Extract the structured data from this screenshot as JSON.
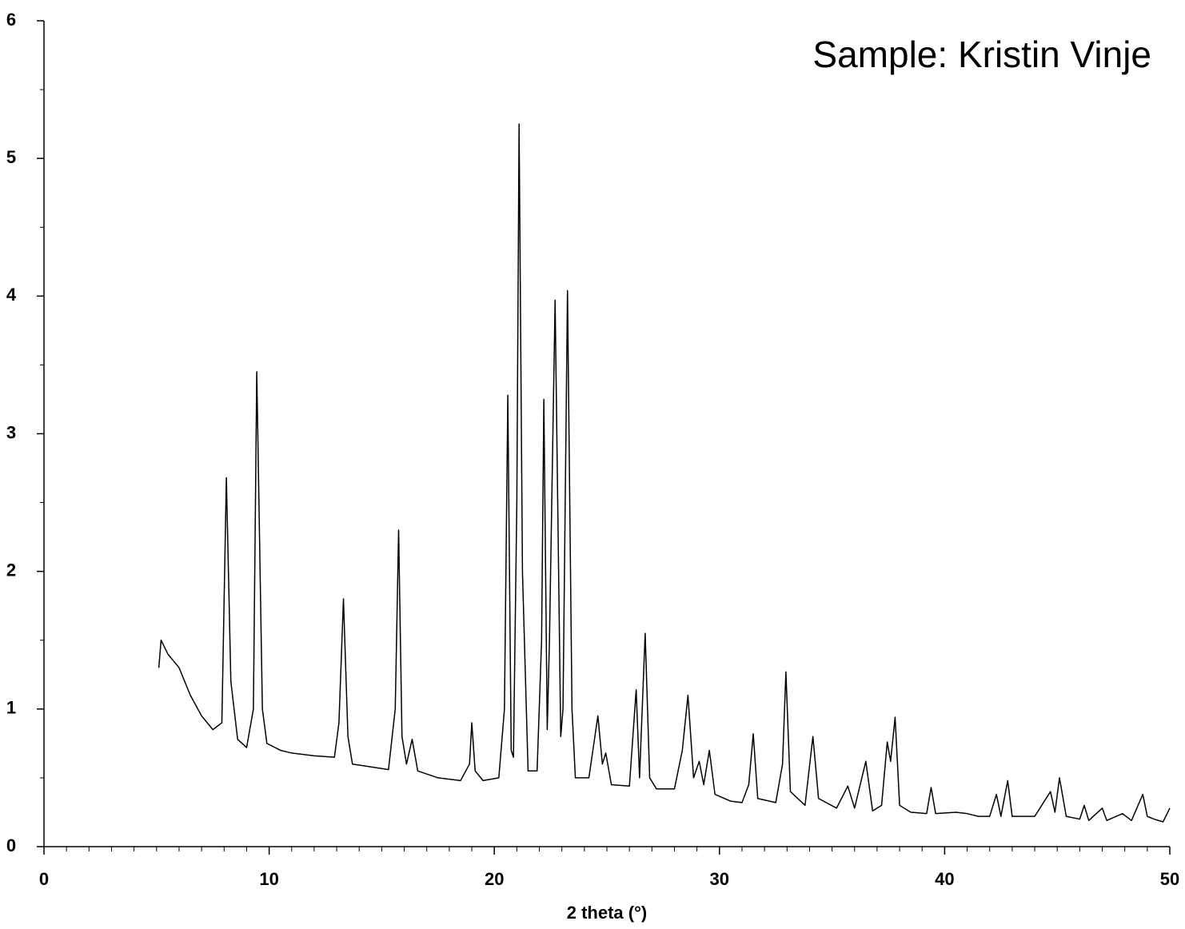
{
  "chart_data": {
    "type": "line",
    "annotation": "Sample: Kristin Vinje",
    "xlabel": "2 theta (°)",
    "color": "#000000",
    "xlim": [
      0,
      50
    ],
    "xticks": [
      0,
      10,
      20,
      30,
      40,
      50
    ],
    "xminorticks": [
      1,
      2,
      3,
      4,
      5,
      6,
      7,
      8,
      9,
      11,
      12,
      13,
      14,
      15,
      16,
      17,
      18,
      19,
      21,
      22,
      23,
      24,
      25,
      26,
      27,
      28,
      29,
      31,
      32,
      33,
      34,
      35,
      36,
      37,
      38,
      39,
      41,
      42,
      43,
      44,
      45,
      46,
      47,
      48,
      49
    ],
    "ylim": [
      0,
      6
    ],
    "yticks": [
      0,
      1,
      2,
      3,
      4,
      5,
      6
    ],
    "yminorticks": [
      0.5,
      1.5,
      2.5,
      3.5,
      4.5,
      5.5
    ],
    "x": [
      5.1,
      5.2,
      5.5,
      6,
      6.5,
      7,
      7.5,
      7.9,
      8.1,
      8.3,
      8.6,
      9.0,
      9.3,
      9.45,
      9.7,
      9.9,
      10.5,
      11,
      12,
      12.9,
      13.1,
      13.3,
      13.5,
      13.7,
      14.5,
      15.3,
      15.6,
      15.75,
      15.9,
      16.1,
      16.35,
      16.6,
      17.5,
      18.5,
      18.9,
      19.0,
      19.15,
      19.5,
      20.2,
      20.45,
      20.6,
      20.75,
      20.85,
      21.0,
      21.1,
      21.25,
      21.5,
      21.9,
      22.1,
      22.2,
      22.35,
      22.45,
      22.7,
      22.95,
      23.05,
      23.25,
      23.45,
      23.6,
      24.2,
      24.6,
      24.8,
      24.95,
      25.2,
      26.0,
      26.3,
      26.45,
      26.7,
      26.9,
      27.2,
      28.0,
      28.35,
      28.6,
      28.85,
      29.1,
      29.3,
      29.55,
      29.8,
      30.5,
      31.0,
      31.3,
      31.5,
      31.7,
      32.5,
      32.8,
      32.95,
      33.15,
      33.8,
      34.15,
      34.4,
      35.2,
      35.7,
      36.0,
      36.5,
      36.8,
      37.2,
      37.45,
      37.6,
      37.8,
      38.0,
      38.5,
      39.2,
      39.4,
      39.6,
      40.5,
      41,
      41.5,
      42.0,
      42.3,
      42.5,
      42.8,
      43.0,
      44,
      44.7,
      44.9,
      45.1,
      45.4,
      46.0,
      46.2,
      46.4,
      47,
      47.2,
      47.9,
      48.3,
      48.8,
      49.0,
      49.3,
      49.7,
      50.0
    ],
    "values": [
      1.3,
      1.5,
      1.4,
      1.3,
      1.1,
      0.95,
      0.85,
      0.9,
      2.68,
      1.2,
      0.78,
      0.72,
      1.0,
      3.45,
      1.0,
      0.75,
      0.7,
      0.68,
      0.66,
      0.65,
      0.9,
      1.8,
      0.8,
      0.6,
      0.58,
      0.56,
      1.0,
      2.3,
      0.8,
      0.6,
      0.78,
      0.55,
      0.5,
      0.48,
      0.6,
      0.9,
      0.55,
      0.48,
      0.5,
      1.0,
      3.28,
      0.7,
      0.65,
      2.5,
      5.25,
      2.0,
      0.55,
      0.55,
      1.5,
      3.25,
      0.85,
      1.5,
      3.97,
      0.8,
      1.0,
      4.04,
      1.0,
      0.5,
      0.5,
      0.95,
      0.6,
      0.68,
      0.45,
      0.44,
      1.14,
      0.5,
      1.55,
      0.5,
      0.42,
      0.42,
      0.7,
      1.1,
      0.5,
      0.62,
      0.45,
      0.7,
      0.38,
      0.33,
      0.32,
      0.45,
      0.82,
      0.35,
      0.32,
      0.6,
      1.27,
      0.4,
      0.3,
      0.8,
      0.35,
      0.28,
      0.44,
      0.28,
      0.62,
      0.26,
      0.3,
      0.76,
      0.62,
      0.94,
      0.3,
      0.25,
      0.24,
      0.43,
      0.24,
      0.25,
      0.24,
      0.22,
      0.22,
      0.38,
      0.22,
      0.48,
      0.22,
      0.22,
      0.4,
      0.25,
      0.5,
      0.22,
      0.2,
      0.3,
      0.19,
      0.28,
      0.19,
      0.24,
      0.19,
      0.38,
      0.22,
      0.2,
      0.18,
      0.28
    ]
  }
}
